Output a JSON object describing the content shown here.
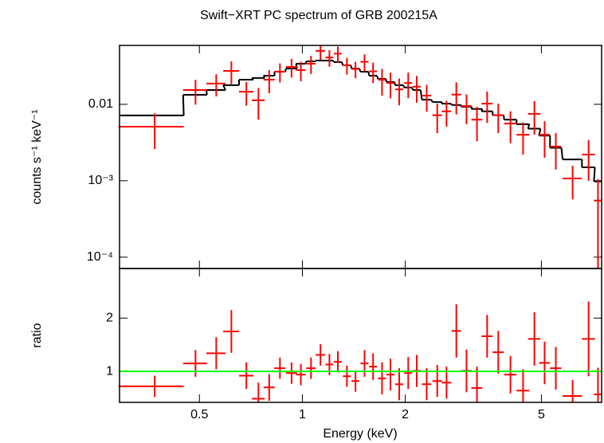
{
  "chart_data": [
    {
      "type": "spectrum",
      "title": "Swift−XRT PC spectrum of GRB 200215A",
      "ylabel": "counts s⁻¹ keV⁻¹",
      "log_x": true,
      "log_y": true,
      "xlim": [
        0.292,
        7.5
      ],
      "ylim": [
        7.1e-05,
        0.059
      ],
      "yticks": [
        0.01,
        {
          "value": 0.001,
          "label": "10⁻³"
        },
        {
          "value": 0.0001,
          "label": "10⁻⁴"
        }
      ],
      "color": "#ff0000",
      "model_color": "#000000",
      "x": [
        0.37,
        0.487,
        0.56,
        0.62,
        0.686,
        0.744,
        0.8,
        0.86,
        0.93,
        0.99,
        1.06,
        1.13,
        1.2,
        1.27,
        1.35,
        1.43,
        1.52,
        1.61,
        1.71,
        1.81,
        1.92,
        2.04,
        2.16,
        2.31,
        2.48,
        2.64,
        2.82,
        3.02,
        3.24,
        3.47,
        3.74,
        4.06,
        4.42,
        4.77,
        5.11,
        5.51,
        6.17,
        6.87,
        7.32
      ],
      "xerr": [
        0.08,
        0.039,
        0.036,
        0.033,
        0.033,
        0.032,
        0.03,
        0.032,
        0.035,
        0.032,
        0.034,
        0.036,
        0.032,
        0.034,
        0.036,
        0.038,
        0.041,
        0.043,
        0.046,
        0.049,
        0.052,
        0.055,
        0.058,
        0.074,
        0.08,
        0.085,
        0.091,
        0.11,
        0.12,
        0.13,
        0.14,
        0.17,
        0.19,
        0.2,
        0.19,
        0.21,
        0.4,
        0.3,
        0.2
      ],
      "values": [
        0.0051,
        0.0154,
        0.0187,
        0.0274,
        0.0146,
        0.0113,
        0.021,
        0.0268,
        0.0309,
        0.028,
        0.034,
        0.05,
        0.041,
        0.046,
        0.0325,
        0.029,
        0.036,
        0.027,
        0.021,
        0.019,
        0.0157,
        0.019,
        0.017,
        0.013,
        0.0072,
        0.0081,
        0.0134,
        0.0095,
        0.0063,
        0.0102,
        0.0072,
        0.0056,
        0.004,
        0.0075,
        0.004,
        0.0028,
        0.00107,
        0.0022,
        0.00055
      ],
      "yerr": [
        0.0025,
        0.0055,
        0.006,
        0.009,
        0.005,
        0.005,
        0.007,
        0.0075,
        0.0085,
        0.008,
        0.009,
        0.012,
        0.01,
        0.011,
        0.008,
        0.007,
        0.009,
        0.008,
        0.008,
        0.007,
        0.006,
        0.007,
        0.0065,
        0.005,
        0.003,
        0.003,
        0.006,
        0.004,
        0.003,
        0.0045,
        0.003,
        0.0025,
        0.0018,
        0.0035,
        0.002,
        0.0014,
        0.0005,
        0.0012,
        0.0005
      ],
      "model": [
        0.00715,
        0.0133,
        0.0154,
        0.0178,
        0.021,
        0.0221,
        0.0237,
        0.0267,
        0.0294,
        0.034,
        0.0365,
        0.0374,
        0.0374,
        0.0357,
        0.0324,
        0.0294,
        0.0267,
        0.0237,
        0.0215,
        0.0196,
        0.0178,
        0.0166,
        0.0154,
        0.0115,
        0.0107,
        0.0102,
        0.0098,
        0.0093,
        0.0087,
        0.0081,
        0.0072,
        0.0063,
        0.0055,
        0.0048,
        0.0039,
        0.0027,
        0.0019,
        0.0015,
        0.00098
      ]
    },
    {
      "type": "ratio",
      "xlabel": "Energy (keV)",
      "ylabel": "ratio",
      "log_x": true,
      "xlim": [
        0.292,
        7.5
      ],
      "ylim": [
        0.42,
        2.93
      ],
      "xticks": [
        0.5,
        1,
        2,
        5
      ],
      "yticks": [
        1,
        2
      ],
      "color": "#ff0000",
      "hline": 1,
      "hline_color": "#00ff00",
      "x": [
        0.37,
        0.487,
        0.56,
        0.62,
        0.686,
        0.744,
        0.8,
        0.86,
        0.93,
        0.99,
        1.06,
        1.13,
        1.2,
        1.27,
        1.35,
        1.43,
        1.52,
        1.61,
        1.71,
        1.81,
        1.92,
        2.04,
        2.16,
        2.31,
        2.48,
        2.64,
        2.82,
        3.02,
        3.24,
        3.47,
        3.74,
        4.06,
        4.42,
        4.77,
        5.11,
        5.51,
        6.17,
        6.87,
        7.32
      ],
      "xerr": [
        0.08,
        0.039,
        0.036,
        0.033,
        0.033,
        0.032,
        0.03,
        0.032,
        0.035,
        0.032,
        0.034,
        0.036,
        0.032,
        0.034,
        0.036,
        0.038,
        0.041,
        0.043,
        0.046,
        0.049,
        0.052,
        0.055,
        0.058,
        0.074,
        0.08,
        0.085,
        0.091,
        0.11,
        0.12,
        0.13,
        0.14,
        0.17,
        0.19,
        0.2,
        0.19,
        0.21,
        0.4,
        0.3,
        0.2
      ],
      "values": [
        0.72,
        1.15,
        1.34,
        1.75,
        0.92,
        0.49,
        0.7,
        1.06,
        0.97,
        0.94,
        1.06,
        1.31,
        1.13,
        1.18,
        0.91,
        0.82,
        1.15,
        1.09,
        0.87,
        0.94,
        0.76,
        0.97,
        1.01,
        0.76,
        0.82,
        0.79,
        1.76,
        1.01,
        0.69,
        1.66,
        1.36,
        0.94,
        0.64,
        1.61,
        1.16,
        1.06,
        0.54,
        1.61,
        0.57
      ],
      "yerr": [
        0.2,
        0.25,
        0.3,
        0.4,
        0.25,
        0.3,
        0.25,
        0.2,
        0.2,
        0.2,
        0.2,
        0.2,
        0.2,
        0.2,
        0.2,
        0.2,
        0.25,
        0.25,
        0.3,
        0.3,
        0.3,
        0.3,
        0.3,
        0.3,
        0.3,
        0.3,
        0.5,
        0.4,
        0.4,
        0.4,
        0.4,
        0.35,
        0.4,
        0.5,
        0.4,
        0.4,
        0.3,
        0.7,
        0.5
      ]
    }
  ]
}
